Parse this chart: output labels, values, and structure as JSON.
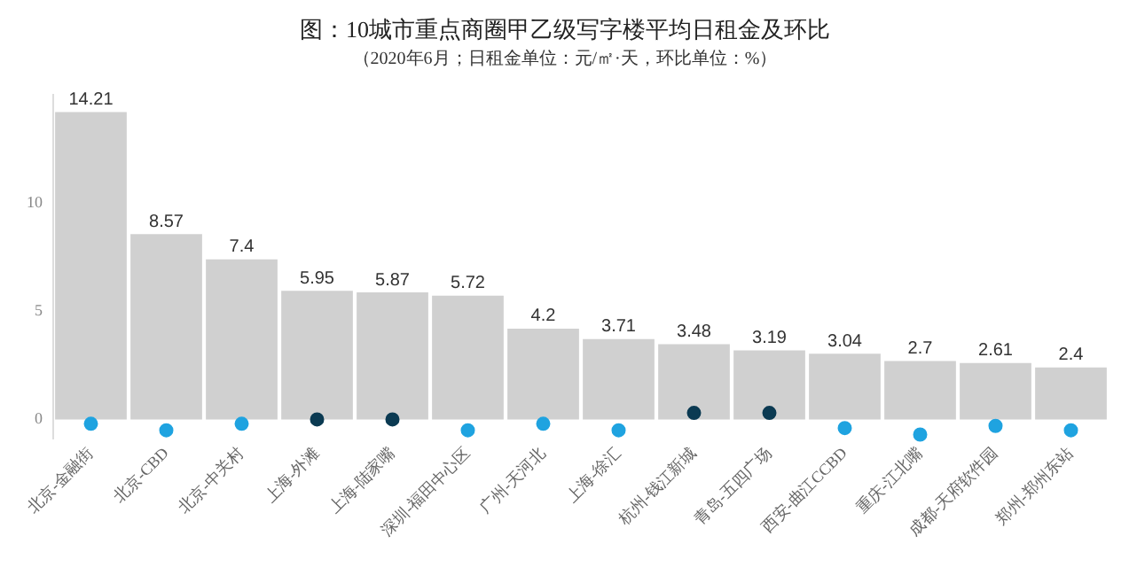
{
  "chart_data": {
    "type": "bar",
    "title": "图：10城市重点商圈甲乙级写字楼平均日租金及环比",
    "subtitle": "（2020年6月；日租金单位：元/㎡·天，环比单位：%）",
    "categories": [
      "北京-金融街",
      "北京-CBD",
      "北京-中关村",
      "上海-外滩",
      "上海-陆家嘴",
      "深圳-福田中心区",
      "广州-天河北",
      "上海-徐汇",
      "杭州-钱江新城",
      "青岛-五四广场",
      "西安-曲江CCBD",
      "重庆-江北嘴",
      "成都-天府软件园",
      "郑州-郑州东站"
    ],
    "series": [
      {
        "color": "#d0d0d0",
        "values": [
          14.21,
          8.57,
          7.4,
          5.95,
          5.87,
          5.72,
          4.2,
          3.71,
          3.48,
          3.19,
          3.04,
          2.7,
          2.61,
          2.4
        ],
        "value_labels": [
          "14.21",
          "8.57",
          "7.4",
          "5.95",
          "5.87",
          "5.72",
          "4.2",
          "3.71",
          "3.48",
          "3.19",
          "3.04",
          "2.7",
          "2.61",
          "2.4"
        ]
      },
      {
        "type": "scatter",
        "x": [
          "北京-金融街",
          "北京-CBD",
          "北京-中关村",
          "上海-外滩",
          "上海-陆家嘴",
          "深圳-福田中心区",
          "广州-天河北",
          "上海-徐汇",
          "杭州-钱江新城",
          "青岛-五四广场",
          "西安-曲江CCBD",
          "重庆-江北嘴",
          "成都-天府软件园",
          "郑州-郑州东站"
        ],
        "values": [
          -0.2,
          -0.5,
          -0.2,
          0,
          0,
          -0.5,
          -0.2,
          -0.5,
          0.3,
          0.3,
          -0.4,
          -0.7,
          -0.3,
          -0.5
        ],
        "colors": [
          "#1fa3e0",
          "#1fa3e0",
          "#1fa3e0",
          "#0b3a52",
          "#0b3a52",
          "#1fa3e0",
          "#1fa3e0",
          "#1fa3e0",
          "#0b3a52",
          "#0b3a52",
          "#1fa3e0",
          "#1fa3e0",
          "#1fa3e0",
          "#1fa3e0"
        ]
      }
    ],
    "ylim": [
      -0.9,
      15
    ],
    "yticks": [
      0,
      5,
      10
    ],
    "grid": false,
    "legend": false,
    "marker": "circle"
  }
}
